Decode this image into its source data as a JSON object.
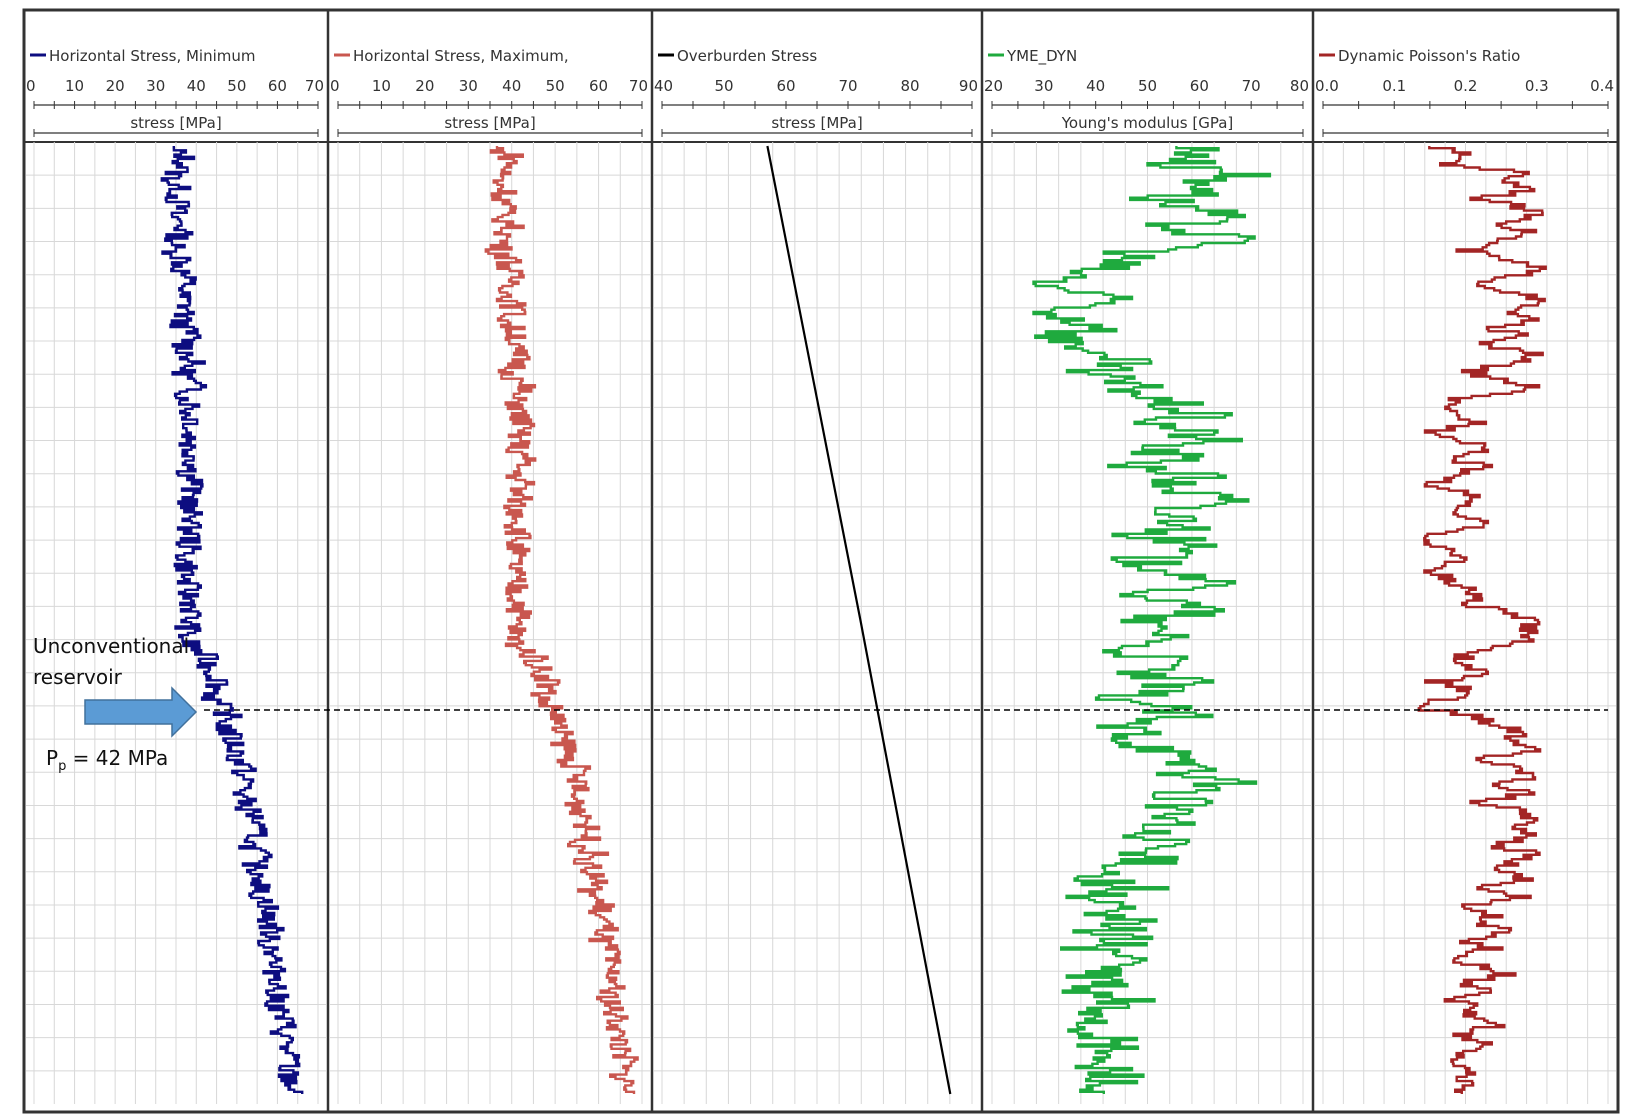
{
  "chart_data": [
    {
      "type": "line",
      "title": "Horizontal Stress, Minimum",
      "xlabel": "stress [MPa]",
      "xlim": [
        0,
        70
      ],
      "xticks": [
        0,
        10,
        20,
        30,
        40,
        50,
        60,
        70
      ],
      "color": "#0d0d80",
      "series": [
        {
          "name": "Horizontal Stress, Minimum",
          "x": [
            33,
            37,
            37,
            35,
            34,
            36,
            35,
            36,
            34,
            37,
            36,
            35,
            34,
            37,
            36,
            37,
            38,
            36,
            37,
            38,
            36,
            37,
            39,
            37,
            38,
            39,
            37,
            38,
            40,
            37,
            39,
            38,
            40,
            38,
            39,
            38,
            40,
            39,
            38,
            40,
            38,
            39,
            37,
            40,
            38,
            39,
            38,
            38,
            37,
            38,
            37,
            38,
            38,
            39,
            39,
            38,
            38,
            37,
            39,
            42,
            43,
            44,
            46,
            45,
            44,
            46,
            48,
            47,
            48,
            49,
            50,
            50,
            52,
            51,
            53,
            51,
            52,
            53,
            55,
            54,
            55,
            53,
            56,
            54,
            55,
            57,
            55,
            56,
            58,
            57,
            58,
            59,
            57,
            59,
            60,
            58,
            60,
            61,
            59,
            60,
            60,
            61,
            62,
            61,
            63,
            61,
            64,
            62,
            63,
            64,
            63
          ],
          "y": [
            0,
            1,
            2,
            3,
            4,
            5,
            6,
            7,
            8,
            9,
            10,
            11,
            12,
            13,
            14,
            15,
            16,
            17,
            18,
            19,
            20,
            21,
            22,
            23,
            24,
            25,
            26,
            27,
            28,
            29,
            30,
            31,
            32,
            33,
            34,
            35,
            36,
            37,
            38,
            39,
            40,
            41,
            42,
            43,
            44,
            45,
            46,
            47,
            48,
            49,
            50,
            51,
            52,
            53,
            54,
            55,
            56,
            57,
            58,
            59,
            60,
            61,
            62,
            63,
            64,
            65,
            66,
            67,
            68,
            69,
            70,
            71,
            72,
            73,
            74,
            75,
            76,
            77,
            78,
            79,
            80,
            81,
            82,
            83,
            84,
            85,
            86,
            87,
            88,
            89,
            90,
            91,
            92,
            93,
            94,
            95,
            96,
            97,
            98,
            99,
            100,
            101,
            102,
            103,
            104,
            105,
            106,
            107,
            108,
            109,
            110
          ]
        }
      ]
    },
    {
      "type": "line",
      "title": "Horizontal Stress, Maximum,",
      "xlabel": "stress [MPa]",
      "xlim": [
        0,
        70
      ],
      "xticks": [
        0,
        10,
        20,
        30,
        40,
        50,
        60,
        70
      ],
      "color": "#c9574f",
      "series": [
        {
          "name": "Horizontal Stress, Maximum,",
          "x": [
            36,
            40,
            40,
            38,
            37,
            39,
            38,
            39,
            37,
            40,
            39,
            38,
            37,
            40,
            39,
            40,
            41,
            39,
            40,
            41,
            39,
            40,
            42,
            40,
            41,
            42,
            40,
            41,
            43,
            40,
            42,
            41,
            43,
            41,
            42,
            41,
            43,
            42,
            41,
            43,
            41,
            42,
            40,
            43,
            41,
            42,
            41,
            41,
            40,
            41,
            40,
            41,
            41,
            42,
            42,
            41,
            41,
            40,
            42,
            45,
            46,
            47,
            49,
            48,
            47,
            49,
            51,
            50,
            51,
            52,
            53,
            53,
            55,
            54,
            56,
            54,
            55,
            56,
            58,
            57,
            58,
            56,
            59,
            57,
            58,
            60,
            58,
            59,
            61,
            60,
            61,
            62,
            60,
            62,
            63,
            61,
            63,
            64,
            62,
            63,
            63,
            64,
            65,
            64,
            66,
            64,
            67,
            65,
            66,
            67,
            66
          ],
          "y": [
            0,
            1,
            2,
            3,
            4,
            5,
            6,
            7,
            8,
            9,
            10,
            11,
            12,
            13,
            14,
            15,
            16,
            17,
            18,
            19,
            20,
            21,
            22,
            23,
            24,
            25,
            26,
            27,
            28,
            29,
            30,
            31,
            32,
            33,
            34,
            35,
            36,
            37,
            38,
            39,
            40,
            41,
            42,
            43,
            44,
            45,
            46,
            47,
            48,
            49,
            50,
            51,
            52,
            53,
            54,
            55,
            56,
            57,
            58,
            59,
            60,
            61,
            62,
            63,
            64,
            65,
            66,
            67,
            68,
            69,
            70,
            71,
            72,
            73,
            74,
            75,
            76,
            77,
            78,
            79,
            80,
            81,
            82,
            83,
            84,
            85,
            86,
            87,
            88,
            89,
            90,
            91,
            92,
            93,
            94,
            95,
            96,
            97,
            98,
            99,
            100,
            101,
            102,
            103,
            104,
            105,
            106,
            107,
            108,
            109,
            110
          ]
        }
      ]
    },
    {
      "type": "line",
      "title": "Overburden Stress",
      "xlabel": "stress [MPa]",
      "xlim": [
        40,
        90
      ],
      "xticks": [
        40,
        50,
        60,
        70,
        80,
        90
      ],
      "color": "#000000",
      "series": [
        {
          "name": "Overburden Stress",
          "x": [
            57,
            72,
            86.5
          ],
          "y": [
            0,
            55,
            110
          ]
        }
      ]
    },
    {
      "type": "line",
      "title": "YME_DYN",
      "xlabel": "Young's modulus [GPa]",
      "xlim": [
        20,
        80
      ],
      "xticks": [
        20,
        30,
        40,
        50,
        60,
        70,
        80
      ],
      "color": "#1faa3e",
      "series": [
        {
          "name": "YME_DYN",
          "x": [
            58,
            62,
            55,
            70,
            60,
            65,
            52,
            58,
            63,
            55,
            60,
            68,
            50,
            45,
            40,
            35,
            30,
            38,
            42,
            32,
            36,
            44,
            30,
            40,
            35,
            46,
            38,
            42,
            48,
            50,
            55,
            60,
            52,
            58,
            62,
            50,
            56,
            48,
            60,
            54,
            58,
            65,
            52,
            56,
            60,
            50,
            58,
            54,
            48,
            55,
            62,
            58,
            50,
            56,
            60,
            46,
            52,
            58,
            44,
            50,
            54,
            48,
            56,
            50,
            46,
            52,
            56,
            42,
            50,
            48,
            55,
            52,
            62,
            58,
            66,
            54,
            60,
            52,
            56,
            50,
            48,
            54,
            46,
            52,
            44,
            40,
            48,
            36,
            44,
            38,
            50,
            42,
            46,
            40,
            48,
            44,
            38,
            42,
            36,
            46,
            40,
            44,
            38,
            42,
            40,
            44,
            38,
            42,
            46,
            40,
            42
          ],
          "y": [
            0,
            1,
            2,
            3,
            4,
            5,
            6,
            7,
            8,
            9,
            10,
            11,
            12,
            13,
            14,
            15,
            16,
            17,
            18,
            19,
            20,
            21,
            22,
            23,
            24,
            25,
            26,
            27,
            28,
            29,
            30,
            31,
            32,
            33,
            34,
            35,
            36,
            37,
            38,
            39,
            40,
            41,
            42,
            43,
            44,
            45,
            46,
            47,
            48,
            49,
            50,
            51,
            52,
            53,
            54,
            55,
            56,
            57,
            58,
            59,
            60,
            61,
            62,
            63,
            64,
            65,
            66,
            67,
            68,
            69,
            70,
            71,
            72,
            73,
            74,
            75,
            76,
            77,
            78,
            79,
            80,
            81,
            82,
            83,
            84,
            85,
            86,
            87,
            88,
            89,
            90,
            91,
            92,
            93,
            94,
            95,
            96,
            97,
            98,
            99,
            100,
            101,
            102,
            103,
            104,
            105,
            106,
            107,
            108,
            109,
            110
          ]
        }
      ]
    },
    {
      "type": "line",
      "title": "Dynamic Poisson's Ratio",
      "xlabel": "",
      "xlim": [
        0.0,
        0.4
      ],
      "xticks": [
        "0.0",
        "0.1",
        "0.2",
        "0.3",
        "0.4"
      ],
      "color": "#a32525",
      "series": [
        {
          "name": "Dynamic Poisson's Ratio",
          "x": [
            0.16,
            0.2,
            0.18,
            0.28,
            0.26,
            0.3,
            0.22,
            0.28,
            0.3,
            0.26,
            0.29,
            0.24,
            0.2,
            0.25,
            0.3,
            0.27,
            0.22,
            0.28,
            0.3,
            0.26,
            0.29,
            0.24,
            0.28,
            0.22,
            0.3,
            0.27,
            0.2,
            0.25,
            0.3,
            0.2,
            0.16,
            0.18,
            0.22,
            0.16,
            0.2,
            0.24,
            0.18,
            0.22,
            0.2,
            0.15,
            0.19,
            0.22,
            0.17,
            0.2,
            0.23,
            0.16,
            0.14,
            0.18,
            0.2,
            0.15,
            0.17,
            0.19,
            0.22,
            0.2,
            0.26,
            0.29,
            0.28,
            0.3,
            0.25,
            0.2,
            0.18,
            0.24,
            0.16,
            0.2,
            0.18,
            0.12,
            0.22,
            0.24,
            0.28,
            0.26,
            0.3,
            0.22,
            0.27,
            0.3,
            0.25,
            0.29,
            0.22,
            0.28,
            0.3,
            0.26,
            0.29,
            0.24,
            0.3,
            0.27,
            0.25,
            0.29,
            0.22,
            0.28,
            0.2,
            0.24,
            0.22,
            0.26,
            0.2,
            0.24,
            0.18,
            0.22,
            0.26,
            0.2,
            0.24,
            0.18,
            0.22,
            0.2,
            0.24,
            0.18,
            0.22,
            0.2,
            0.17,
            0.21,
            0.19,
            0.2,
            0.2
          ],
          "y": [
            0,
            1,
            2,
            3,
            4,
            5,
            6,
            7,
            8,
            9,
            10,
            11,
            12,
            13,
            14,
            15,
            16,
            17,
            18,
            19,
            20,
            21,
            22,
            23,
            24,
            25,
            26,
            27,
            28,
            29,
            30,
            31,
            32,
            33,
            34,
            35,
            36,
            37,
            38,
            39,
            40,
            41,
            42,
            43,
            44,
            45,
            46,
            47,
            48,
            49,
            50,
            51,
            52,
            53,
            54,
            55,
            56,
            57,
            58,
            59,
            60,
            61,
            62,
            63,
            64,
            65,
            66,
            67,
            68,
            69,
            70,
            71,
            72,
            73,
            74,
            75,
            76,
            77,
            78,
            79,
            80,
            81,
            82,
            83,
            84,
            85,
            86,
            87,
            88,
            89,
            90,
            91,
            92,
            93,
            94,
            95,
            96,
            97,
            98,
            99,
            100,
            101,
            102,
            103,
            104,
            105,
            106,
            107,
            108,
            109,
            110
          ]
        }
      ]
    }
  ],
  "annotations": {
    "reservoir_label_line1": "Unconventional",
    "reservoir_label_line2": "reservoir",
    "pp_label_prefix": "P",
    "pp_label_sub": "p",
    "pp_label_suffix": " = 42 MPa",
    "arrow_color": "#5b9bd5"
  }
}
